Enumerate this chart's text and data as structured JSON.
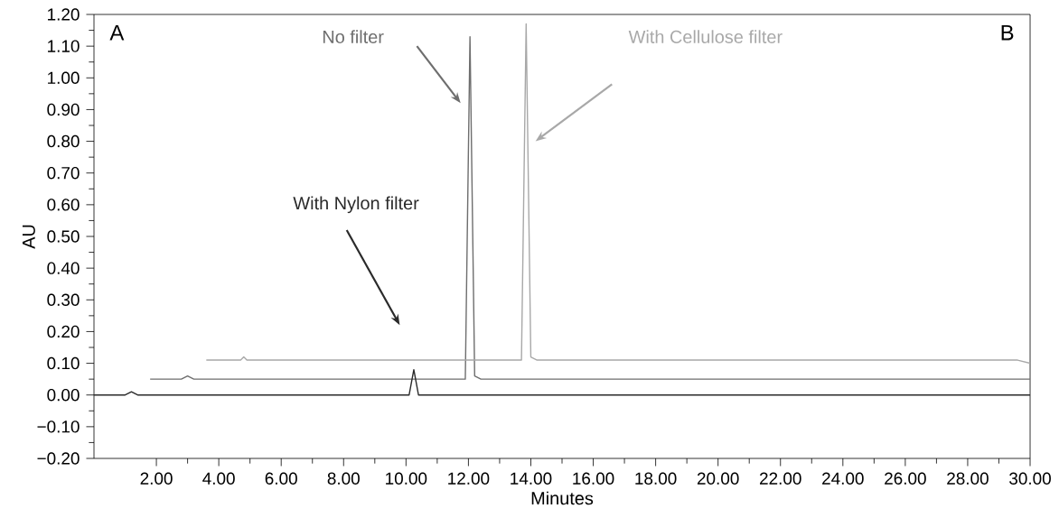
{
  "chart_data": {
    "type": "line",
    "xlabel": "Minutes",
    "ylabel": "AU",
    "annotations": [
      "A",
      "B"
    ],
    "xlim": [
      0,
      30
    ],
    "ylim": [
      -0.2,
      1.2
    ],
    "xticks": [
      {
        "value": 2,
        "label": "2.00"
      },
      {
        "value": 4,
        "label": "4.00"
      },
      {
        "value": 6,
        "label": "6.00"
      },
      {
        "value": 8,
        "label": "8.00"
      },
      {
        "value": 10,
        "label": "10.00"
      },
      {
        "value": 12,
        "label": "12.00"
      },
      {
        "value": 14,
        "label": "14.00"
      },
      {
        "value": 16,
        "label": "16.00"
      },
      {
        "value": 18,
        "label": "18.00"
      },
      {
        "value": 20,
        "label": "20.00"
      },
      {
        "value": 22,
        "label": "22.00"
      },
      {
        "value": 24,
        "label": "24.00"
      },
      {
        "value": 26,
        "label": "26.00"
      },
      {
        "value": 28,
        "label": "28.00"
      },
      {
        "value": 30,
        "label": "30.00"
      }
    ],
    "yticks": [
      {
        "value": -0.2,
        "label": "−0.20"
      },
      {
        "value": -0.1,
        "label": "−0.10"
      },
      {
        "value": 0,
        "label": "0.00"
      },
      {
        "value": 0.1,
        "label": "0.10"
      },
      {
        "value": 0.2,
        "label": "0.20"
      },
      {
        "value": 0.3,
        "label": "0.30"
      },
      {
        "value": 0.4,
        "label": "0.40"
      },
      {
        "value": 0.5,
        "label": "0.50"
      },
      {
        "value": 0.6,
        "label": "0.60"
      },
      {
        "value": 0.7,
        "label": "0.70"
      },
      {
        "value": 0.8,
        "label": "0.80"
      },
      {
        "value": 0.9,
        "label": "0.90"
      },
      {
        "value": 1.0,
        "label": "1.00"
      },
      {
        "value": 1.1,
        "label": "1.10"
      },
      {
        "value": 1.2,
        "label": "1.20"
      }
    ],
    "grid": false,
    "legend": false,
    "marker": "none",
    "line_style": "solid",
    "series": [
      {
        "name": "No filter",
        "color": "#6e6e6e",
        "x": [
          1.8,
          2.8,
          3.0,
          3.2,
          11.9,
          12.05,
          12.2,
          12.4,
          30
        ],
        "values": [
          0.05,
          0.05,
          0.06,
          0.05,
          0.05,
          1.13,
          0.06,
          0.05,
          0.05
        ]
      },
      {
        "name": "With Nylon filter",
        "color": "#2a2a2a",
        "x": [
          0,
          1.0,
          1.2,
          1.4,
          10.1,
          10.25,
          10.4,
          10.6,
          30
        ],
        "values": [
          0,
          0,
          0.01,
          0,
          0,
          0.08,
          0,
          0,
          0
        ]
      },
      {
        "name": "With Cellulose filter",
        "color": "#a8a8a8",
        "x": [
          3.6,
          4.7,
          4.8,
          4.9,
          13.7,
          13.85,
          14.0,
          14.2,
          29.6,
          30
        ],
        "values": [
          0.11,
          0.11,
          0.12,
          0.11,
          0.11,
          1.17,
          0.12,
          0.11,
          0.11,
          0.1
        ]
      }
    ]
  }
}
